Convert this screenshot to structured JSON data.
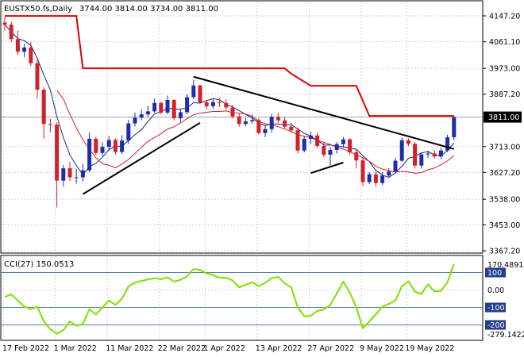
{
  "header": {
    "symbol": "EUSTX50.fs,Daily",
    "ohlc": "3744.00 3814.00 3734.00 3811.00"
  },
  "price_scale": {
    "labels": [
      "4147.20",
      "4061.10",
      "3973.00",
      "3887.20",
      "3713.00",
      "3627.20",
      "3538.00",
      "3453.00",
      "3367.20"
    ],
    "current_price": "3811.00"
  },
  "cci": {
    "title": "CCI(27) 150.0513",
    "labels": [
      "170.4891",
      "100",
      "0.00",
      "-100",
      "-200",
      "-279.1422"
    ]
  },
  "dates": [
    "17 Feb 2022",
    "1 Mar 2022",
    "11 Mar 2022",
    "22 Mar 2022",
    "1 Apr 2022",
    "13 Apr 2022",
    "27 Apr 2022",
    "9 May 2022",
    "19 May 2022"
  ],
  "colors": {
    "bull": "#1f2ea8",
    "bear": "#d4202a",
    "ma_fast": "#1a237e",
    "ma_slow": "#d4202a",
    "resistance_step": "#e00000",
    "trendline": "#000000",
    "cci_line": "#7fe000",
    "grid": "#c9d6e3",
    "price_tag_bg": "#000000",
    "level_box_bg": "#243e8c"
  },
  "chart_data": {
    "type": "candlestick",
    "title": "EUSTX50.fs,Daily",
    "x": [
      "17 Feb 2022",
      "18 Feb 2022",
      "21 Feb 2022",
      "22 Feb 2022",
      "23 Feb 2022",
      "24 Feb 2022",
      "25 Feb 2022",
      "28 Feb 2022",
      "1 Mar 2022",
      "2 Mar 2022",
      "3 Mar 2022",
      "4 Mar 2022",
      "7 Mar 2022",
      "8 Mar 2022",
      "9 Mar 2022",
      "10 Mar 2022",
      "11 Mar 2022",
      "14 Mar 2022",
      "15 Mar 2022",
      "16 Mar 2022",
      "17 Mar 2022",
      "18 Mar 2022",
      "21 Mar 2022",
      "22 Mar 2022",
      "23 Mar 2022",
      "24 Mar 2022",
      "25 Mar 2022",
      "28 Mar 2022",
      "29 Mar 2022",
      "30 Mar 2022",
      "31 Mar 2022",
      "1 Apr 2022",
      "4 Apr 2022",
      "5 Apr 2022",
      "6 Apr 2022",
      "7 Apr 2022",
      "8 Apr 2022",
      "11 Apr 2022",
      "12 Apr 2022",
      "13 Apr 2022",
      "14 Apr 2022",
      "19 Apr 2022",
      "20 Apr 2022",
      "21 Apr 2022",
      "22 Apr 2022",
      "25 Apr 2022",
      "26 Apr 2022",
      "27 Apr 2022",
      "28 Apr 2022",
      "29 Apr 2022",
      "2 May 2022",
      "3 May 2022",
      "4 May 2022",
      "5 May 2022",
      "6 May 2022",
      "9 May 2022",
      "10 May 2022",
      "11 May 2022",
      "12 May 2022",
      "13 May 2022",
      "16 May 2022",
      "17 May 2022",
      "18 May 2022",
      "19 May 2022",
      "20 May 2022",
      "23 May 2022",
      "24 May 2022",
      "25 May 2022",
      "26 May 2022",
      "27 May 2022"
    ],
    "open": [
      4125,
      4118,
      4070,
      4028,
      4042,
      3990,
      3902,
      3788,
      3786,
      3600,
      3641,
      3611,
      3611,
      3634,
      3739,
      3692,
      3712,
      3735,
      3695,
      3733,
      3790,
      3809,
      3820,
      3830,
      3858,
      3826,
      3868,
      3807,
      3827,
      3877,
      3916,
      3860,
      3847,
      3861,
      3858,
      3843,
      3813,
      3788,
      3797,
      3801,
      3758,
      3771,
      3812,
      3800,
      3779,
      3767,
      3700,
      3739,
      3750,
      3715,
      3686,
      3702,
      3721,
      3737,
      3694,
      3667,
      3595,
      3621,
      3592,
      3617,
      3630,
      3666,
      3734,
      3722,
      3650,
      3687,
      3690,
      3680,
      3700,
      3744
    ],
    "close": [
      4118,
      4070,
      4028,
      4042,
      3990,
      3902,
      3788,
      3786,
      3600,
      3641,
      3611,
      3611,
      3634,
      3739,
      3692,
      3712,
      3735,
      3695,
      3733,
      3790,
      3809,
      3820,
      3830,
      3858,
      3826,
      3868,
      3807,
      3827,
      3877,
      3916,
      3860,
      3847,
      3861,
      3858,
      3843,
      3813,
      3788,
      3797,
      3801,
      3758,
      3771,
      3812,
      3800,
      3779,
      3767,
      3700,
      3739,
      3750,
      3715,
      3686,
      3702,
      3721,
      3737,
      3694,
      3667,
      3595,
      3621,
      3592,
      3617,
      3630,
      3666,
      3734,
      3722,
      3650,
      3687,
      3690,
      3680,
      3700,
      3744,
      3811
    ],
    "high": [
      4145,
      4128,
      4098,
      4055,
      4060,
      4003,
      3910,
      3805,
      3794,
      3652,
      3663,
      3640,
      3655,
      3760,
      3745,
      3728,
      3748,
      3740,
      3751,
      3802,
      3826,
      3836,
      3848,
      3872,
      3862,
      3882,
      3870,
      3838,
      3887,
      3935,
      3918,
      3868,
      3872,
      3874,
      3870,
      3852,
      3822,
      3808,
      3820,
      3806,
      3785,
      3822,
      3826,
      3812,
      3792,
      3776,
      3748,
      3762,
      3760,
      3728,
      3711,
      3728,
      3745,
      3741,
      3702,
      3676,
      3629,
      3630,
      3628,
      3642,
      3676,
      3743,
      3740,
      3728,
      3694,
      3699,
      3702,
      3709,
      3752,
      3814
    ],
    "low": [
      4098,
      4061,
      4016,
      4010,
      3980,
      3872,
      3740,
      3760,
      3511,
      3580,
      3598,
      3590,
      3597,
      3628,
      3685,
      3682,
      3703,
      3686,
      3688,
      3722,
      3780,
      3800,
      3812,
      3826,
      3820,
      3820,
      3800,
      3794,
      3820,
      3870,
      3856,
      3836,
      3838,
      3844,
      3835,
      3806,
      3779,
      3780,
      3789,
      3753,
      3744,
      3760,
      3792,
      3773,
      3760,
      3690,
      3694,
      3722,
      3708,
      3678,
      3650,
      3690,
      3709,
      3686,
      3640,
      3582,
      3588,
      3580,
      3585,
      3610,
      3624,
      3662,
      3714,
      3640,
      3640,
      3676,
      3672,
      3671,
      3695,
      3734
    ],
    "ylim": [
      3367.2,
      4147.2
    ],
    "indicator": {
      "name": "CCI(27)",
      "current": 150.0513,
      "ylim": [
        -279.1422,
        170.4891
      ],
      "levels": [
        100,
        0,
        -100,
        -200
      ],
      "values": [
        -40,
        -25,
        -60,
        -95,
        -110,
        -95,
        -180,
        -225,
        -250,
        -230,
        -180,
        -205,
        -195,
        -110,
        -140,
        -100,
        -60,
        -85,
        -50,
        20,
        42,
        52,
        60,
        68,
        62,
        72,
        48,
        58,
        78,
        120,
        115,
        95,
        85,
        70,
        70,
        55,
        15,
        30,
        44,
        22,
        40,
        68,
        75,
        38,
        15,
        -100,
        -150,
        -148,
        -120,
        -112,
        -85,
        -20,
        48,
        -15,
        -100,
        -220,
        -180,
        -140,
        -95,
        -80,
        -60,
        22,
        50,
        -10,
        -22,
        32,
        -8,
        -5,
        45,
        150.0513
      ]
    }
  }
}
